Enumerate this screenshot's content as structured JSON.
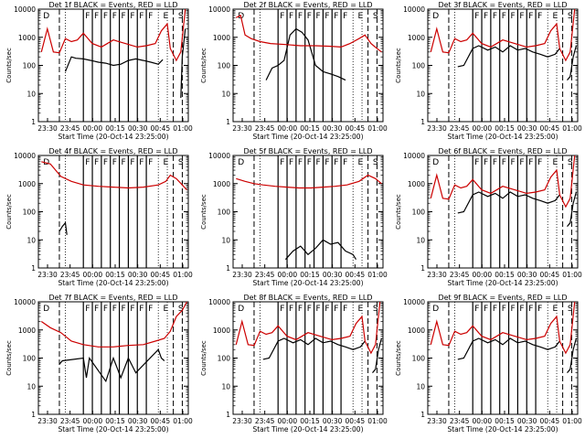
{
  "chart_data": [
    {
      "type": "line",
      "title": "Det 1f BLACK = Events, RED = LLD",
      "xlabel": "Start Time (20-Oct-14 23:25:00)",
      "ylabel": "Counts/sec",
      "x_ticks": [
        "23:30",
        "23:45",
        "00:00",
        "00:15",
        "00:30",
        "00:45",
        "01:00"
      ],
      "y_ticks": [
        "1",
        "10",
        "100",
        "1000",
        "10000"
      ],
      "xlim_min": [
        0,
        100
      ],
      "ylim": [
        1,
        10000
      ],
      "yscale": "log",
      "markers": [
        "D",
        "F",
        "F",
        "F",
        "F",
        "F",
        "F",
        "F",
        "F",
        "E",
        "S"
      ],
      "series": [
        {
          "name": "Events",
          "color": "#000000",
          "x": [
            2,
            10,
            16,
            18,
            22,
            25,
            30,
            35,
            40,
            45,
            50,
            55,
            60,
            65,
            70,
            75,
            80,
            83,
            86,
            88,
            90,
            93,
            95,
            96,
            98
          ],
          "y": [
            null,
            null,
            null,
            60,
            200,
            180,
            170,
            150,
            130,
            120,
            100,
            110,
            150,
            170,
            150,
            130,
            110,
            160,
            null,
            null,
            null,
            null,
            7,
            200,
            2000
          ]
        },
        {
          "name": "LLD",
          "color": "#cc0000",
          "x": [
            2,
            6,
            10,
            14,
            18,
            22,
            26,
            30,
            36,
            42,
            50,
            58,
            66,
            72,
            78,
            82,
            86,
            88,
            92,
            95,
            98
          ],
          "y": [
            300,
            2000,
            300,
            280,
            900,
            700,
            800,
            1400,
            600,
            450,
            800,
            600,
            450,
            500,
            600,
            1700,
            3000,
            400,
            150,
            300,
            10000
          ]
        }
      ]
    },
    {
      "type": "line",
      "title": "Det 2f BLACK = Events, RED = LLD",
      "xlabel": "Start Time (20-Oct-14 23:25:00)",
      "ylabel": "Counts/sec",
      "x_ticks": [
        "23:30",
        "23:45",
        "00:00",
        "00:15",
        "00:30",
        "00:45",
        "01:00"
      ],
      "y_ticks": [
        "1",
        "10",
        "100",
        "1000",
        "10000"
      ],
      "xlim_min": [
        0,
        100
      ],
      "ylim": [
        1,
        10000
      ],
      "yscale": "log",
      "markers": [
        "D",
        "F",
        "F",
        "F",
        "F",
        "F",
        "F",
        "F",
        "F",
        "E",
        "S"
      ],
      "series": [
        {
          "name": "Events",
          "color": "#000000",
          "x": [
            18,
            22,
            26,
            30,
            34,
            38,
            42,
            46,
            50,
            55,
            60,
            65,
            70,
            75,
            80,
            85,
            90,
            95,
            98
          ],
          "y": [
            null,
            30,
            80,
            100,
            150,
            1200,
            2000,
            1500,
            800,
            100,
            60,
            50,
            40,
            30,
            null,
            null,
            null,
            null,
            null
          ]
        },
        {
          "name": "LLD",
          "color": "#cc0000",
          "x": [
            2,
            5,
            8,
            12,
            18,
            25,
            35,
            45,
            55,
            65,
            72,
            78,
            84,
            88,
            92,
            96,
            99
          ],
          "y": [
            5000,
            6000,
            1200,
            900,
            700,
            600,
            550,
            500,
            500,
            480,
            450,
            600,
            900,
            1200,
            600,
            400,
            300
          ]
        }
      ]
    },
    {
      "type": "line",
      "title": "Det 3f BLACK = Events, RED = LLD",
      "xlabel": "Start Time (20-Oct-14 23:25:00)",
      "ylabel": "Counts/sec",
      "x_ticks": [
        "23:30",
        "23:45",
        "00:00",
        "00:15",
        "00:30",
        "00:45",
        "01:00"
      ],
      "y_ticks": [
        "1",
        "10",
        "100",
        "1000",
        "10000"
      ],
      "xlim_min": [
        0,
        100
      ],
      "ylim": [
        1,
        10000
      ],
      "yscale": "log",
      "markers": [
        "D",
        "F",
        "F",
        "F",
        "F",
        "F",
        "F",
        "F",
        "F",
        "E",
        "S"
      ],
      "series": [
        {
          "name": "Events",
          "color": "#000000",
          "x": [
            20,
            24,
            30,
            34,
            40,
            45,
            50,
            55,
            60,
            65,
            70,
            75,
            80,
            85,
            88,
            90,
            93,
            95,
            97,
            99
          ],
          "y": [
            90,
            100,
            400,
            500,
            350,
            450,
            300,
            500,
            350,
            400,
            300,
            250,
            200,
            250,
            400,
            null,
            30,
            40,
            200,
            500
          ]
        },
        {
          "name": "LLD",
          "color": "#cc0000",
          "x": [
            2,
            6,
            10,
            14,
            18,
            22,
            26,
            30,
            36,
            42,
            50,
            58,
            66,
            72,
            78,
            82,
            86,
            88,
            92,
            95,
            98
          ],
          "y": [
            300,
            2000,
            300,
            280,
            900,
            700,
            800,
            1400,
            600,
            450,
            800,
            600,
            450,
            500,
            600,
            1700,
            3000,
            400,
            150,
            300,
            10000
          ]
        }
      ]
    },
    {
      "type": "line",
      "title": "Det 4f BLACK = Events, RED = LLD",
      "xlabel": "Start Time (20-Oct-14 23:25:00)",
      "ylabel": "Counts/sec",
      "x_ticks": [
        "23:30",
        "23:45",
        "00:00",
        "00:15",
        "00:30",
        "00:45",
        "01:00"
      ],
      "y_ticks": [
        "1",
        "10",
        "100",
        "1000",
        "10000"
      ],
      "xlim_min": [
        0,
        100
      ],
      "ylim": [
        1,
        10000
      ],
      "yscale": "log",
      "markers": [
        "D",
        "F",
        "F",
        "F",
        "F",
        "F",
        "F",
        "F",
        "F",
        "E",
        "S"
      ],
      "series": [
        {
          "name": "Events",
          "color": "#000000",
          "x": [
            14,
            16,
            18,
            19
          ],
          "y": [
            20,
            30,
            40,
            15
          ]
        },
        {
          "name": "LLD",
          "color": "#cc0000",
          "x": [
            2,
            8,
            15,
            22,
            30,
            40,
            50,
            60,
            70,
            80,
            85,
            88,
            92,
            96,
            99
          ],
          "y": [
            6000,
            5000,
            1800,
            1200,
            900,
            800,
            750,
            700,
            750,
            900,
            1200,
            2000,
            1500,
            900,
            600
          ]
        }
      ]
    },
    {
      "type": "line",
      "title": "Det 5f BLACK = Events, RED = LLD",
      "xlabel": "Start Time (20-Oct-14 23:25:00)",
      "ylabel": "Counts/sec",
      "x_ticks": [
        "23:30",
        "23:45",
        "00:00",
        "00:15",
        "00:30",
        "00:45",
        "01:00"
      ],
      "y_ticks": [
        "1",
        "10",
        "100",
        "1000",
        "10000"
      ],
      "xlim_min": [
        0,
        100
      ],
      "ylim": [
        1,
        10000
      ],
      "yscale": "log",
      "markers": [
        "D",
        "F",
        "F",
        "F",
        "F",
        "F",
        "F",
        "F",
        "F",
        "E",
        "S"
      ],
      "series": [
        {
          "name": "Events",
          "color": "#000000",
          "x": [
            35,
            40,
            45,
            50,
            55,
            60,
            65,
            70,
            75,
            80,
            82
          ],
          "y": [
            2,
            4,
            6,
            3,
            5,
            10,
            7,
            8,
            4,
            3,
            2
          ]
        },
        {
          "name": "LLD",
          "color": "#cc0000",
          "x": [
            2,
            8,
            14,
            20,
            28,
            36,
            44,
            52,
            60,
            68,
            76,
            84,
            90,
            95,
            99
          ],
          "y": [
            1500,
            1200,
            1000,
            900,
            800,
            750,
            700,
            700,
            750,
            800,
            900,
            1200,
            2000,
            1500,
            1000
          ]
        }
      ]
    },
    {
      "type": "line",
      "title": "Det 6f BLACK = Events, RED = LLD",
      "xlabel": "Start Time (20-Oct-14 23:25:00)",
      "ylabel": "Counts/sec",
      "x_ticks": [
        "23:30",
        "23:45",
        "00:00",
        "00:15",
        "00:30",
        "00:45",
        "01:00"
      ],
      "y_ticks": [
        "1",
        "10",
        "100",
        "1000",
        "10000"
      ],
      "xlim_min": [
        0,
        100
      ],
      "ylim": [
        1,
        10000
      ],
      "yscale": "log",
      "markers": [
        "D",
        "F",
        "F",
        "F",
        "F",
        "F",
        "F",
        "F",
        "F",
        "E",
        "S"
      ],
      "series": [
        {
          "name": "Events",
          "color": "#000000",
          "x": [
            20,
            24,
            30,
            34,
            40,
            45,
            50,
            55,
            60,
            65,
            70,
            75,
            80,
            85,
            88,
            90,
            93,
            95,
            97,
            99
          ],
          "y": [
            90,
            100,
            400,
            500,
            350,
            450,
            300,
            500,
            350,
            400,
            300,
            250,
            200,
            250,
            400,
            null,
            30,
            40,
            200,
            500
          ]
        },
        {
          "name": "LLD",
          "color": "#cc0000",
          "x": [
            2,
            6,
            10,
            14,
            18,
            22,
            26,
            30,
            36,
            42,
            50,
            58,
            66,
            72,
            78,
            82,
            86,
            88,
            92,
            95,
            98
          ],
          "y": [
            300,
            2000,
            300,
            280,
            900,
            700,
            800,
            1400,
            600,
            450,
            800,
            600,
            450,
            500,
            600,
            1700,
            3000,
            400,
            150,
            300,
            10000
          ]
        }
      ]
    },
    {
      "type": "line",
      "title": "Det 7f BLACK = Events, RED = LLD",
      "xlabel": "Start Time (20-Oct-14 23:25:00)",
      "ylabel": "Counts/sec",
      "x_ticks": [
        "23:30",
        "23:45",
        "00:00",
        "00:15",
        "00:30",
        "00:45",
        "01:00"
      ],
      "y_ticks": [
        "1",
        "10",
        "100",
        "1000",
        "10000"
      ],
      "xlim_min": [
        0,
        100
      ],
      "ylim": [
        1,
        10000
      ],
      "yscale": "log",
      "markers": [
        "D",
        "F",
        "F",
        "F",
        "F",
        "F",
        "F",
        "F",
        "F",
        "E",
        "S"
      ],
      "series": [
        {
          "name": "Events",
          "color": "#000000",
          "x": [
            14,
            16,
            30,
            32,
            34,
            45,
            50,
            55,
            60,
            65,
            80,
            82,
            84
          ],
          "y": [
            60,
            80,
            100,
            20,
            100,
            15,
            100,
            20,
            100,
            30,
            200,
            100,
            80
          ]
        },
        {
          "name": "LLD",
          "color": "#cc0000",
          "x": [
            2,
            8,
            15,
            22,
            30,
            40,
            50,
            60,
            70,
            78,
            84,
            88,
            92,
            96,
            99
          ],
          "y": [
            2000,
            1200,
            800,
            400,
            300,
            250,
            250,
            280,
            300,
            400,
            500,
            900,
            3000,
            5000,
            10000
          ]
        }
      ]
    },
    {
      "type": "line",
      "title": "Det 8f BLACK = Events, RED = LLD",
      "xlabel": "Start Time (20-Oct-14 23:25:00)",
      "ylabel": "Counts/sec",
      "x_ticks": [
        "23:30",
        "23:45",
        "00:00",
        "00:15",
        "00:30",
        "00:45",
        "01:00"
      ],
      "y_ticks": [
        "1",
        "10",
        "100",
        "1000",
        "10000"
      ],
      "xlim_min": [
        0,
        100
      ],
      "ylim": [
        1,
        10000
      ],
      "yscale": "log",
      "markers": [
        "D",
        "F",
        "F",
        "F",
        "F",
        "F",
        "F",
        "F",
        "F",
        "E",
        "S"
      ],
      "series": [
        {
          "name": "Events",
          "color": "#000000",
          "x": [
            20,
            24,
            30,
            34,
            40,
            45,
            50,
            55,
            60,
            65,
            70,
            75,
            80,
            85,
            88,
            90,
            93,
            95,
            97,
            99
          ],
          "y": [
            90,
            100,
            400,
            500,
            350,
            450,
            300,
            500,
            350,
            400,
            300,
            250,
            200,
            250,
            400,
            null,
            30,
            40,
            200,
            500
          ]
        },
        {
          "name": "LLD",
          "color": "#cc0000",
          "x": [
            2,
            6,
            10,
            14,
            18,
            22,
            26,
            30,
            36,
            42,
            50,
            58,
            66,
            72,
            78,
            82,
            86,
            88,
            92,
            95,
            98
          ],
          "y": [
            300,
            2000,
            300,
            280,
            900,
            700,
            800,
            1400,
            600,
            450,
            800,
            600,
            450,
            500,
            600,
            1700,
            3000,
            400,
            150,
            300,
            10000
          ]
        }
      ]
    },
    {
      "type": "line",
      "title": "Det 9f BLACK = Events, RED = LLD",
      "xlabel": "Start Time (20-Oct-14 23:25:00)",
      "ylabel": "Counts/sec",
      "x_ticks": [
        "23:30",
        "23:45",
        "00:00",
        "00:15",
        "00:30",
        "00:45",
        "01:00"
      ],
      "y_ticks": [
        "1",
        "10",
        "100",
        "1000",
        "10000"
      ],
      "xlim_min": [
        0,
        100
      ],
      "ylim": [
        1,
        10000
      ],
      "yscale": "log",
      "markers": [
        "D",
        "F",
        "F",
        "F",
        "F",
        "F",
        "F",
        "F",
        "F",
        "E",
        "S"
      ],
      "series": [
        {
          "name": "Events",
          "color": "#000000",
          "x": [
            20,
            24,
            30,
            34,
            40,
            45,
            50,
            55,
            60,
            65,
            70,
            75,
            80,
            85,
            88,
            90,
            93,
            95,
            97,
            99
          ],
          "y": [
            90,
            100,
            400,
            500,
            350,
            450,
            300,
            500,
            350,
            400,
            300,
            250,
            200,
            250,
            400,
            null,
            30,
            40,
            200,
            500
          ]
        },
        {
          "name": "LLD",
          "color": "#cc0000",
          "x": [
            2,
            6,
            10,
            14,
            18,
            22,
            26,
            30,
            36,
            42,
            50,
            58,
            66,
            72,
            78,
            82,
            86,
            88,
            92,
            95,
            98
          ],
          "y": [
            300,
            2000,
            300,
            280,
            900,
            700,
            800,
            1400,
            600,
            450,
            800,
            600,
            450,
            500,
            600,
            1700,
            3000,
            400,
            150,
            300,
            10000
          ]
        }
      ]
    }
  ]
}
